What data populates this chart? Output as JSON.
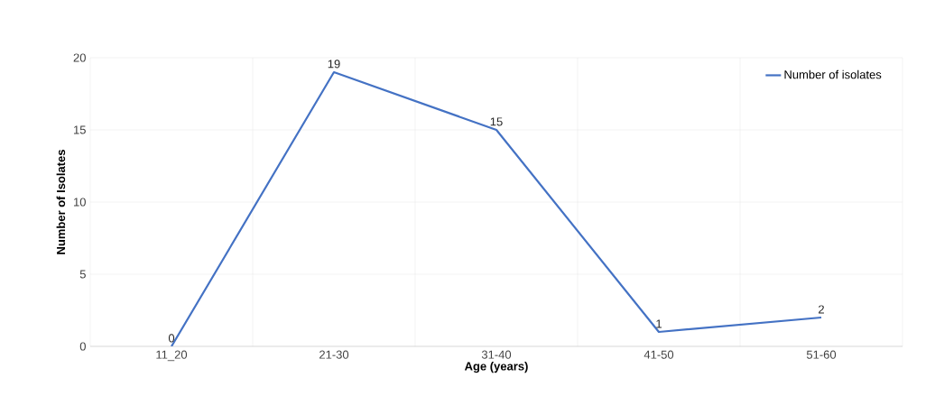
{
  "chart_data": {
    "type": "line",
    "xlabel": "Age (years)",
    "ylabel": "Number of Isolates",
    "categories": [
      "11_20",
      "21-30",
      "31-40",
      "41-50",
      "51-60"
    ],
    "series": [
      {
        "name": "Number of isolates",
        "color": "#4472c4",
        "values": [
          0,
          19,
          15,
          1,
          2
        ]
      }
    ],
    "ylim": [
      0,
      20
    ],
    "yticks": [
      0,
      5,
      10,
      15,
      20
    ],
    "grid": true,
    "legend": "top right",
    "data_labels": true,
    "marker": "none",
    "line_style": "solid"
  }
}
